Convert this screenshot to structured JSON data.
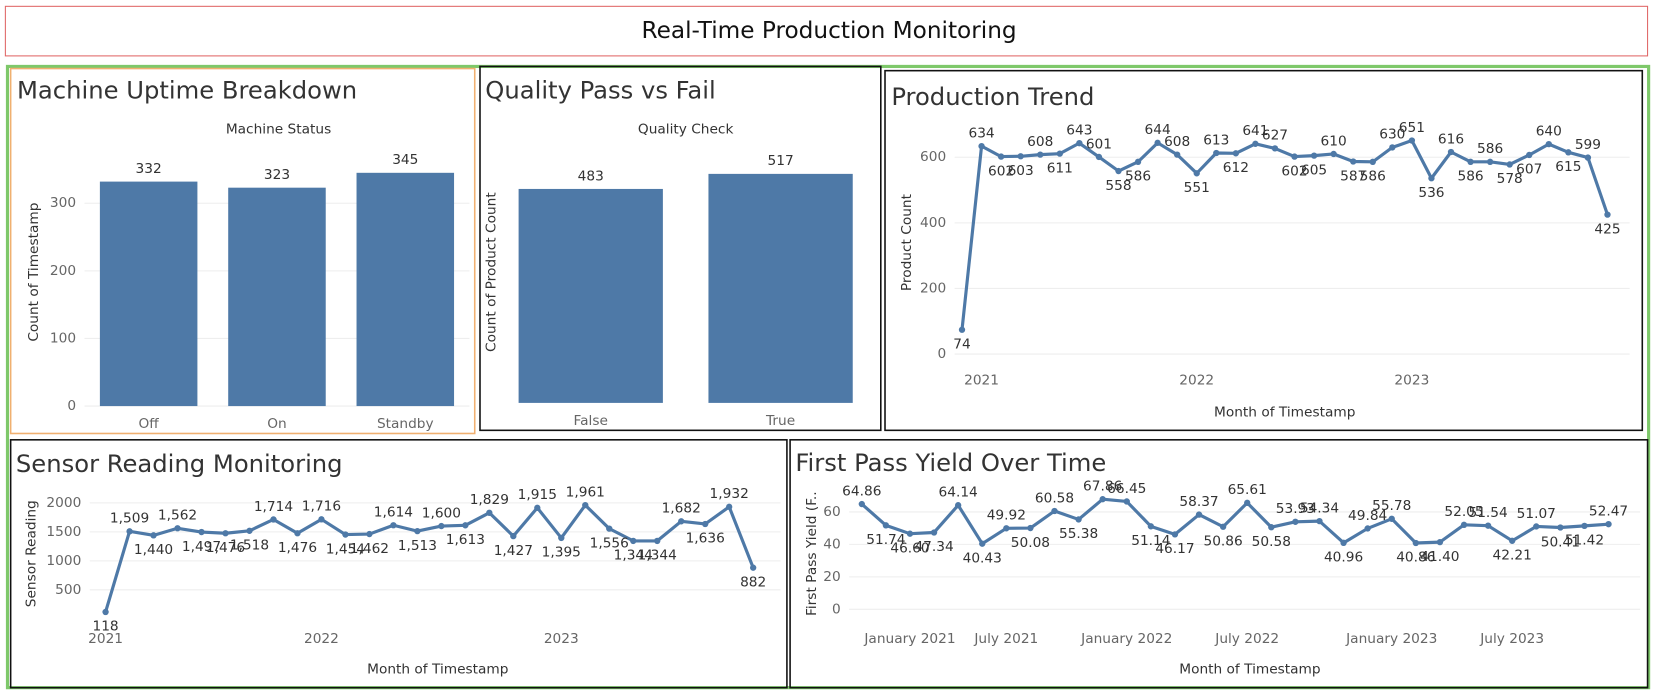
{
  "title": "Real-Time Production Monitoring",
  "chart_data": [
    {
      "type": "bar",
      "title": "Machine Uptime Breakdown",
      "subtitle": "Machine Status",
      "y_label": "Count of Timestamp",
      "categories": [
        "Off",
        "On",
        "Standby"
      ],
      "values": [
        332,
        323,
        345
      ],
      "color": "#4e79a7",
      "ylim": [
        0,
        390
      ],
      "yticks": [
        0,
        100,
        200,
        300
      ],
      "grid": true
    },
    {
      "type": "bar",
      "title": "Quality Pass vs Fail",
      "subtitle": "Quality Check",
      "y_label": "Count of Product Count",
      "categories": [
        "False",
        "True"
      ],
      "values": [
        483,
        517
      ],
      "color": "#4e79a7",
      "ylim": [
        0,
        600
      ]
    },
    {
      "type": "line",
      "title": "Production Trend",
      "x_label": "Month of Timestamp",
      "y_label": "Product Count",
      "categories": [
        null,
        "2021",
        null,
        null,
        null,
        null,
        null,
        null,
        null,
        null,
        null,
        null,
        "2022",
        null,
        null,
        null,
        null,
        null,
        null,
        null,
        null,
        null,
        null,
        "2023",
        null,
        null,
        null,
        null,
        null,
        null,
        null,
        null,
        null,
        null
      ],
      "values": [
        74,
        634,
        602,
        603,
        608,
        611,
        643,
        601,
        558,
        586,
        644,
        608,
        551,
        613,
        612,
        641,
        627,
        602,
        605,
        610,
        587,
        586,
        630,
        651,
        536,
        616,
        586,
        586,
        578,
        607,
        640,
        615,
        599,
        425
      ],
      "color": "#4e79a7",
      "ylim": [
        -30,
        700
      ],
      "yticks": [
        0,
        200,
        400,
        600
      ],
      "grid": true
    },
    {
      "type": "line",
      "title": "Sensor Reading Monitoring",
      "x_label": "Month of Timestamp",
      "y_label": "Sensor Reading",
      "categories": [
        "2021",
        null,
        null,
        null,
        null,
        null,
        null,
        null,
        null,
        "2022",
        null,
        null,
        null,
        null,
        null,
        null,
        null,
        null,
        null,
        "2023",
        null,
        null,
        null,
        null,
        null,
        null,
        null,
        null
      ],
      "values": [
        118,
        1509,
        1440,
        1562,
        1497,
        1476,
        1518,
        1714,
        1476,
        1716,
        1454,
        1462,
        1614,
        1513,
        1600,
        1613,
        1829,
        1427,
        1915,
        1395,
        1961,
        1556,
        1344,
        1344,
        1682,
        1636,
        1932,
        882
      ],
      "value_labels": [
        "118",
        "1,509",
        "1,440",
        "1,562",
        "1,497",
        "1,476",
        "1,518",
        "1,714",
        "1,476",
        "1,716",
        "1,454",
        "1,462",
        "1,614",
        "1,513",
        "1,600",
        "1,613",
        "1,829",
        "1,427",
        "1,915",
        "1,395",
        "1,961",
        "1,556",
        "1,344",
        "1,344",
        "1,682",
        "1,636",
        "1,932",
        "882"
      ],
      "color": "#4e79a7",
      "ylim": [
        -60,
        2160
      ],
      "yticks": [
        500,
        1000,
        1500,
        2000
      ],
      "grid": true
    },
    {
      "type": "line",
      "title": "First Pass Yield Over Time",
      "x_label": "Month of Timestamp",
      "y_label": "First Pass Yield (F..",
      "categories": [
        null,
        null,
        "January 2021",
        null,
        null,
        null,
        "July 2021",
        null,
        null,
        null,
        null,
        "January 2022",
        null,
        null,
        null,
        null,
        "July 2022",
        null,
        null,
        null,
        null,
        null,
        "January 2023",
        null,
        null,
        null,
        null,
        "July 2023",
        null,
        null,
        null,
        null
      ],
      "values": [
        64.86,
        51.74,
        46.6,
        47.34,
        64.14,
        40.43,
        49.92,
        50.08,
        60.58,
        55.38,
        67.86,
        66.45,
        51.14,
        46.17,
        58.37,
        50.86,
        65.61,
        50.58,
        53.93,
        54.34,
        40.96,
        49.84,
        55.78,
        40.86,
        41.4,
        52.05,
        51.54,
        42.21,
        51.07,
        50.41,
        51.42,
        52.47
      ],
      "value_labels": [
        "64.86",
        "51.74",
        "46.60",
        "47.34",
        "64.14",
        "40.43",
        "49.92",
        "50.08",
        "60.58",
        "55.38",
        "67.86",
        "66.45",
        "51.14",
        "46.17",
        "58.37",
        "50.86",
        "65.61",
        "50.58",
        "53.93",
        "54.34",
        "40.96",
        "49.84",
        "55.78",
        "40.86",
        "41.40",
        "52.05",
        "51.54",
        "42.21",
        "51.07",
        "50.41",
        "51.42",
        "52.47"
      ],
      "color": "#4e79a7",
      "ylim": [
        -8,
        70
      ],
      "yticks": [
        0,
        20,
        40,
        60
      ],
      "grid": true
    }
  ]
}
